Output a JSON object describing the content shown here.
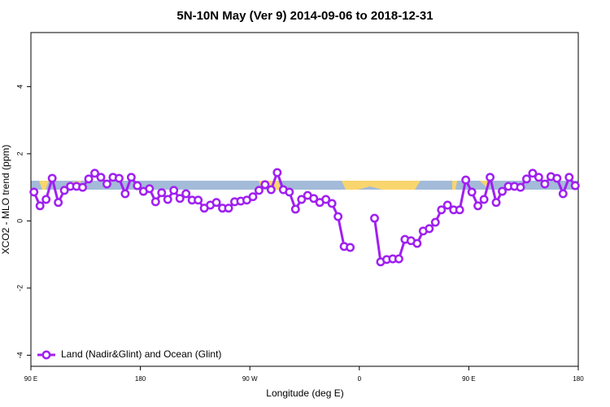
{
  "chart_data": {
    "type": "line",
    "title": "5N-10N May (Ver 9)   2014-09-06 to 2018-12-31",
    "xlabel": "Longitude (deg E)",
    "ylabel": "XCO2 - MLO trend (ppm)",
    "xlim": [
      90,
      540
    ],
    "xticks": [
      {
        "value": 90,
        "label": "90 E"
      },
      180,
      {
        "value": 270,
        "label": "90 W"
      },
      {
        "value": 360,
        "label": "0"
      },
      {
        "value": 450,
        "label": "90 E"
      },
      {
        "value": 540,
        "label": "180"
      }
    ],
    "ylim": [
      -4.33,
      5.61
    ],
    "yticks": [
      -4,
      -2,
      0,
      2,
      4
    ],
    "legend": "bottom-left",
    "x": [
      92.5,
      97.5,
      102.5,
      107.5,
      112.5,
      117.5,
      122.5,
      127.5,
      132.5,
      137.5,
      142.5,
      147.5,
      152.5,
      157.5,
      162.5,
      167.5,
      172.5,
      177.5,
      182.5,
      187.5,
      192.5,
      197.5,
      202.5,
      207.5,
      212.5,
      217.5,
      222.5,
      227.5,
      232.5,
      237.5,
      242.5,
      247.5,
      252.5,
      257.5,
      262.5,
      267.5,
      272.5,
      277.5,
      282.5,
      287.5,
      292.5,
      297.5,
      302.5,
      307.5,
      312.5,
      317.5,
      322.5,
      327.5,
      332.5,
      337.5,
      342.5,
      347.5,
      352.5,
      357.5,
      362.5,
      367.5,
      372.5,
      377.5,
      382.5,
      387.5,
      392.5,
      397.5,
      402.5,
      407.5,
      412.5,
      417.5,
      422.5,
      427.5,
      432.5,
      437.5,
      442.5,
      447.5,
      452.5,
      457.5,
      462.5,
      467.5,
      472.5,
      477.5,
      482.5,
      487.5,
      492.5,
      497.5,
      502.5,
      507.5,
      512.5,
      517.5,
      522.5,
      527.5,
      532.5,
      537.5
    ],
    "series": [
      {
        "name": "Land (Nadir&Glint) and Ocean (Glint)",
        "color": "#a020f0",
        "values": [
          0.86,
          0.45,
          0.64,
          1.27,
          0.55,
          0.91,
          1.03,
          1.03,
          1.0,
          1.25,
          1.42,
          1.3,
          1.1,
          1.3,
          1.27,
          0.81,
          1.3,
          1.05,
          0.88,
          0.96,
          0.57,
          0.84,
          0.64,
          0.91,
          0.67,
          0.81,
          0.62,
          0.62,
          0.38,
          0.47,
          0.55,
          0.38,
          0.38,
          0.57,
          0.59,
          0.62,
          0.72,
          0.91,
          1.08,
          0.93,
          1.44,
          0.93,
          0.86,
          0.35,
          0.64,
          0.76,
          0.67,
          0.55,
          0.64,
          0.52,
          0.13,
          -0.76,
          -0.79,
          null,
          null,
          null,
          0.08,
          -1.22,
          -1.15,
          -1.13,
          -1.13,
          -0.55,
          -0.59,
          -0.67,
          -0.3,
          -0.23,
          -0.04,
          0.33,
          0.47,
          0.33,
          0.33,
          1.22,
          0.86,
          0.45,
          0.64,
          1.3,
          0.55,
          0.88,
          1.03,
          1.03,
          1.0,
          1.25,
          1.42,
          1.3,
          1.1,
          1.32,
          1.27,
          0.81,
          1.3,
          1.05
        ]
      }
    ]
  }
}
